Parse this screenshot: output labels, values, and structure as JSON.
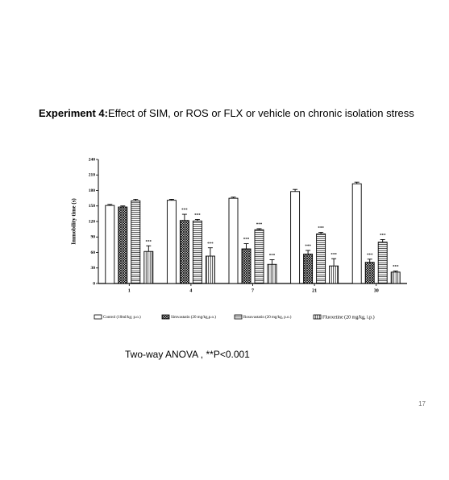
{
  "slide": {
    "title_prefix": "Experiment 4:",
    "title": "Effect of SIM, or ROS or FLX or vehicle on chronic isolation stress",
    "footnote": "Two-way ANOVA , **P<0.001",
    "page_number": "17"
  },
  "chart_data": {
    "type": "bar",
    "y_label": "Immobility time (s)",
    "categories": [
      "1",
      "4",
      "7",
      "21",
      "30"
    ],
    "ylim": [
      0,
      240
    ],
    "yticks": [
      0,
      30,
      60,
      90,
      120,
      150,
      180,
      210,
      240
    ],
    "series": [
      {
        "name": "Control (10ml/kg; p.o.)",
        "color": "#000000",
        "pattern": "none",
        "values": [
          151,
          161,
          165,
          178,
          193
        ],
        "errors": [
          2,
          2,
          2,
          4,
          3
        ],
        "significance": [
          null,
          null,
          null,
          null,
          null
        ]
      },
      {
        "name": "Simvastatin (20 mg/kg,p.o.)",
        "color": "#000000",
        "pattern": "crosshatch",
        "values": [
          148,
          122,
          67,
          57,
          41
        ],
        "errors": [
          2,
          12,
          10,
          7,
          6
        ],
        "significance": [
          null,
          "***",
          "***",
          "***",
          "***"
        ]
      },
      {
        "name": "Rosuvastatin (20 mg/kg, p.o.)",
        "color": "#000000",
        "pattern": "horizontal",
        "values": [
          160,
          121,
          104,
          96,
          80
        ],
        "errors": [
          3,
          3,
          2,
          3,
          5
        ],
        "significance": [
          null,
          "***",
          "***",
          "***",
          "***"
        ]
      },
      {
        "name": "Fluoxetine (20 mg/kg, i.p.)",
        "color": "#000000",
        "pattern": "vertical",
        "values": [
          62,
          53,
          37,
          34,
          22
        ],
        "errors": [
          11,
          16,
          9,
          14,
          2
        ],
        "significance": [
          "***",
          "***",
          "***",
          "***",
          "***"
        ]
      }
    ]
  }
}
